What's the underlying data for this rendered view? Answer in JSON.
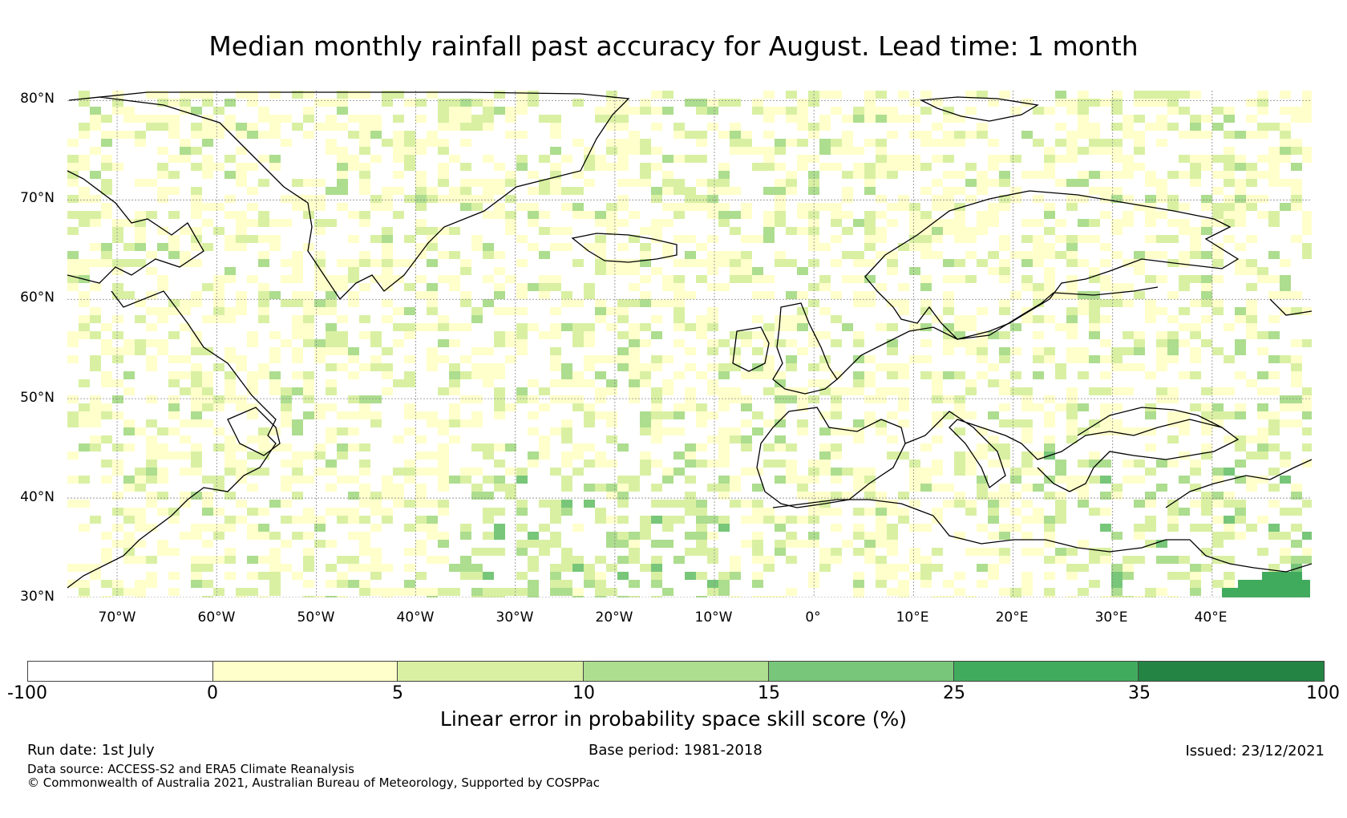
{
  "title": "Median monthly rainfall past accuracy for August. Lead time: 1 month",
  "map": {
    "region": "North Atlantic and Europe",
    "lon_range": [
      -75,
      50
    ],
    "lat_range": [
      30,
      81
    ],
    "lat_labels": [
      "80°N",
      "70°N",
      "60°N",
      "50°N",
      "40°N",
      "30°N"
    ],
    "lon_labels": [
      "70°W",
      "60°W",
      "50°W",
      "40°W",
      "30°W",
      "20°W",
      "10°W",
      "0°",
      "10°E",
      "20°E",
      "30°E",
      "40°E"
    ],
    "gridlines": true
  },
  "colorbar": {
    "ticks": [
      "-100",
      "0",
      "5",
      "10",
      "15",
      "25",
      "35",
      "100"
    ],
    "colors": [
      "#ffffff",
      "#ffffcc",
      "#d9f0a3",
      "#addd8e",
      "#78c679",
      "#41ab5d",
      "#238443"
    ],
    "label": "Linear error in probability space skill score (%)"
  },
  "footer": {
    "run_date": "Run date: 1st July",
    "base_period": "Base period: 1981-2018",
    "issued": "Issued: 23/12/2021",
    "data_source": "Data source: ACCESS-S2 and ERA5 Climate Reanalysis",
    "copyright": "© Commonwealth of Australia 2021, Australian Bureau of Meteorology, Supported by COSPPac"
  }
}
